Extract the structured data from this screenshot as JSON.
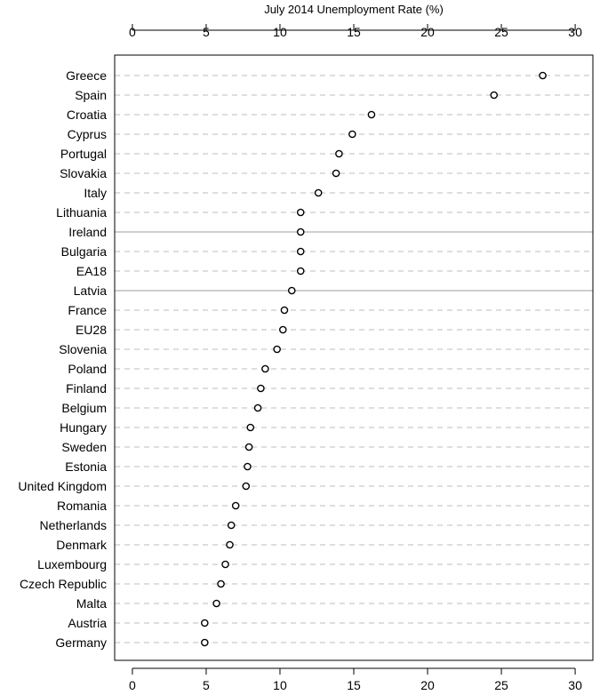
{
  "chart_data": {
    "type": "scatter",
    "title": "July 2014 Unemployment Rate (%)",
    "xlabel": "July 2014 Unemployment Rate (%)",
    "ylabel": "",
    "xlim": [
      -1.2,
      31.2
    ],
    "x_ticks": [
      0,
      5,
      10,
      15,
      20,
      25,
      30
    ],
    "x_tick_labels": [
      "0",
      "5",
      "10",
      "15",
      "20",
      "25",
      "30"
    ],
    "axis_position": "top and bottom",
    "grid": "dashed horizontal gridlines",
    "marker": "open circle",
    "highlighted_rows": [
      "Ireland",
      "Latvia"
    ],
    "categories": [
      "Greece",
      "Spain",
      "Croatia",
      "Cyprus",
      "Portugal",
      "Slovakia",
      "Italy",
      "Lithuania",
      "Ireland",
      "Bulgaria",
      "EA18",
      "Latvia",
      "France",
      "EU28",
      "Slovenia",
      "Poland",
      "Finland",
      "Belgium",
      "Hungary",
      "Sweden",
      "Estonia",
      "United Kingdom",
      "Romania",
      "Netherlands",
      "Denmark",
      "Luxembourg",
      "Czech Republic",
      "Malta",
      "Austria",
      "Germany"
    ],
    "values": [
      27.8,
      24.5,
      16.2,
      14.9,
      14.0,
      13.8,
      12.6,
      11.4,
      11.4,
      11.4,
      11.4,
      10.8,
      10.3,
      10.2,
      9.8,
      9.0,
      8.7,
      8.5,
      8.0,
      7.9,
      7.8,
      7.7,
      7.0,
      6.7,
      6.6,
      6.3,
      6.0,
      5.7,
      4.9,
      4.9
    ]
  }
}
